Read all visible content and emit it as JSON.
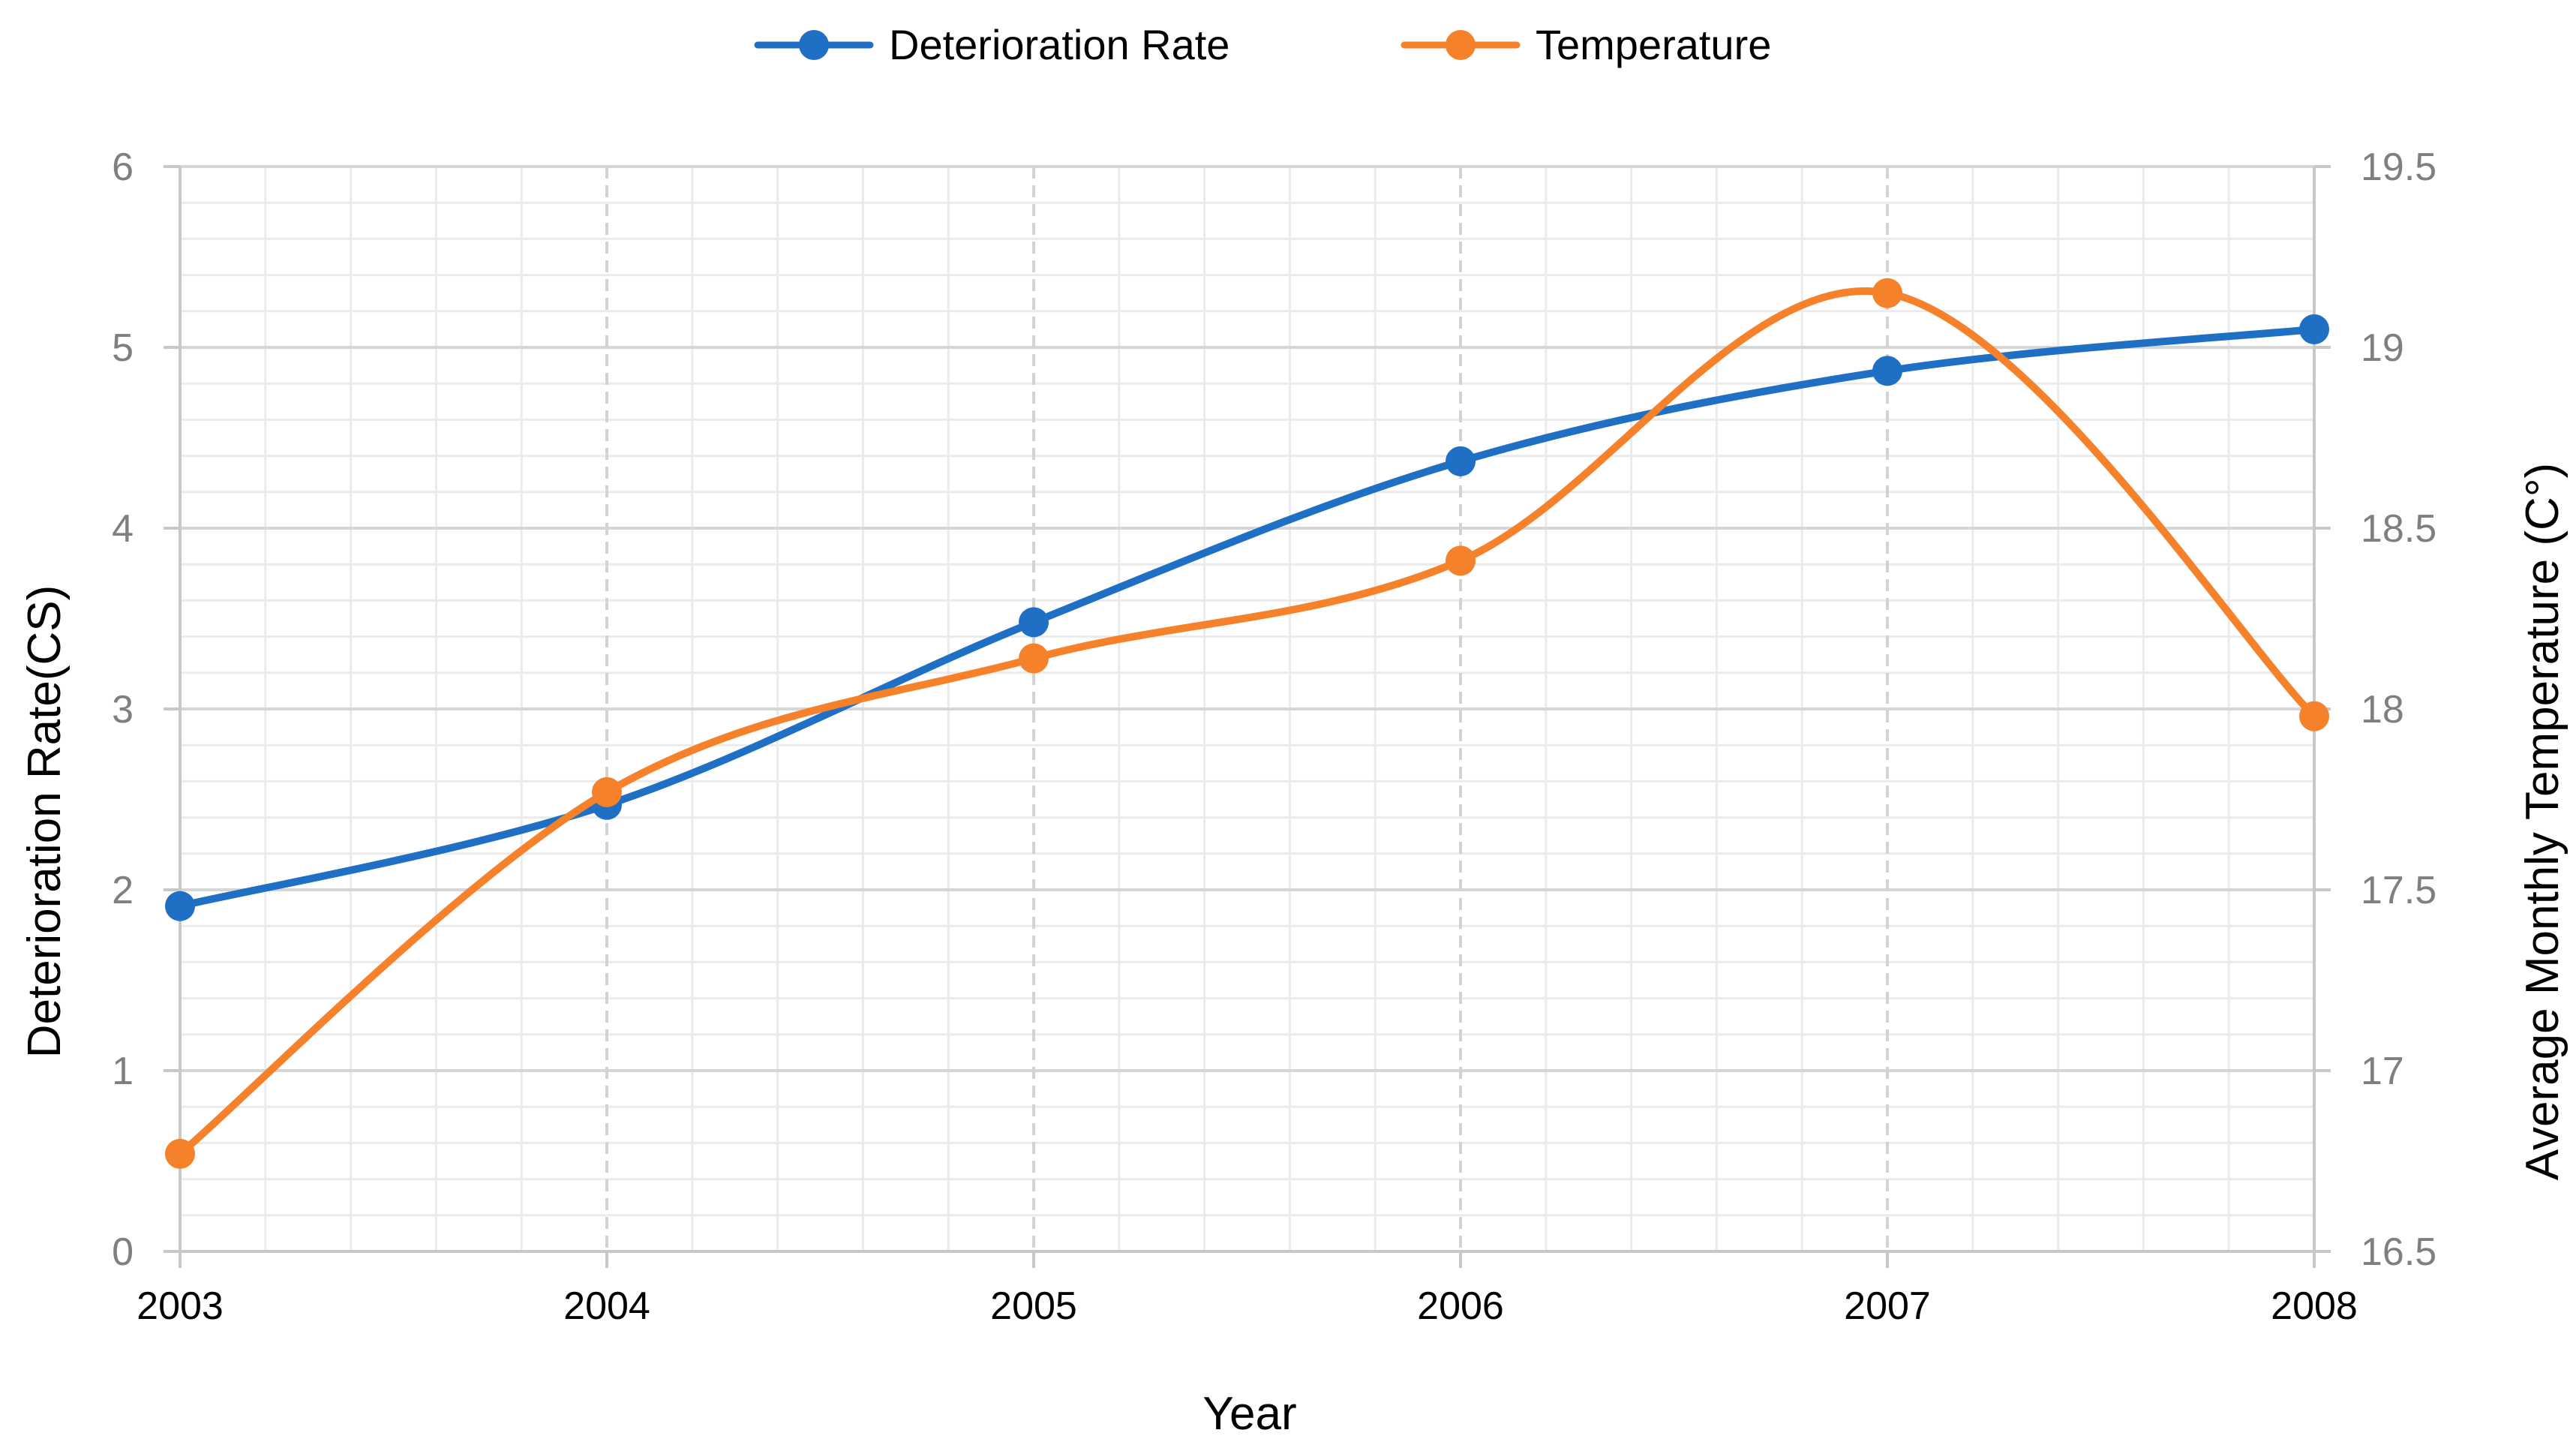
{
  "chart_data": {
    "type": "line",
    "title": "",
    "categories": [
      "2003",
      "2004",
      "2005",
      "2006",
      "2007",
      "2008"
    ],
    "xlabel": "Year",
    "ylabel": "Deterioration Rate(CS)",
    "y2label": "Average Monthly Temperature (C°)",
    "ylim": [
      0,
      6
    ],
    "y2lim": [
      16.5,
      19.5
    ],
    "yticks": [
      "0",
      "1",
      "2",
      "3",
      "4",
      "5",
      "6"
    ],
    "y2ticks": [
      "16.5",
      "17",
      "17.5",
      "18",
      "18.5",
      "19",
      "19.5"
    ],
    "grid": true,
    "legend_position": "top-center",
    "series": [
      {
        "name": "Deterioration Rate",
        "axis": "left",
        "color": "#1f6fc5",
        "values": [
          1.91,
          2.47,
          3.48,
          4.37,
          4.87,
          5.1
        ]
      },
      {
        "name": "Temperature",
        "axis": "right",
        "color": "#f5812a",
        "values": [
          16.77,
          17.77,
          18.14,
          18.41,
          19.15,
          17.98
        ]
      }
    ]
  }
}
